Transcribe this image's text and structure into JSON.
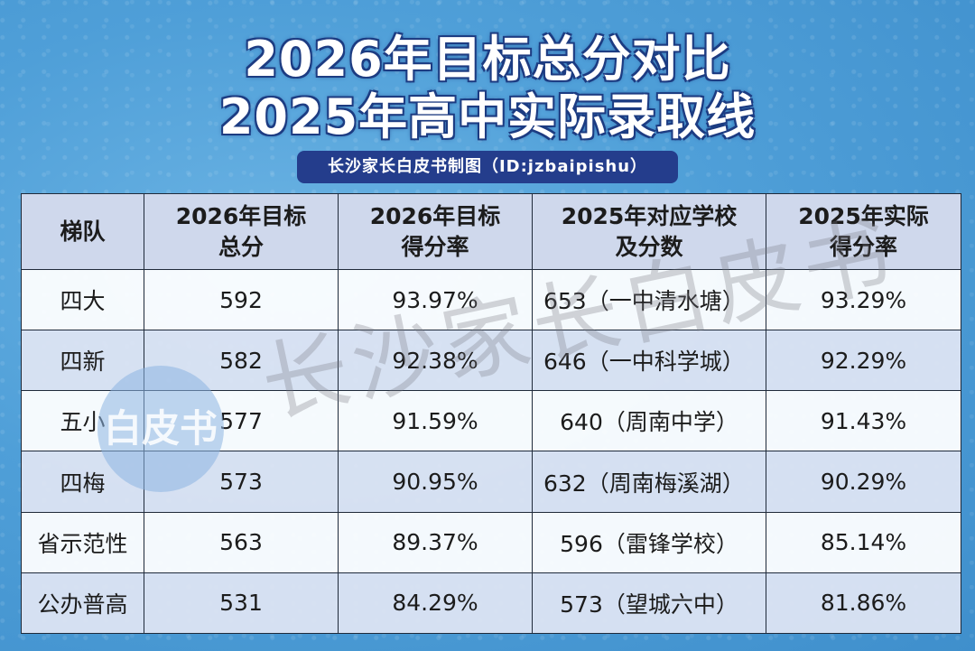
{
  "title_line1": "2026年目标总分对比",
  "title_line2": "2025年高中实际录取线",
  "subtitle": "长沙家长白皮书制图（ID:jzbaipishu）",
  "table": {
    "headers": [
      [
        "梯队"
      ],
      [
        "2026年目标",
        "总分"
      ],
      [
        "2026年目标",
        "得分率"
      ],
      [
        "2025年对应学校",
        "及分数"
      ],
      [
        "2025年实际",
        "得分率"
      ]
    ],
    "rows": [
      {
        "tier": "四大",
        "target_score": "592",
        "target_rate": "93.97%",
        "school": "653（一中清水塘）",
        "actual_rate": "93.29%"
      },
      {
        "tier": "四新",
        "target_score": "582",
        "target_rate": "92.38%",
        "school": "646（一中科学城）",
        "actual_rate": "92.29%"
      },
      {
        "tier": "五小",
        "target_score": "577",
        "target_rate": "91.59%",
        "school": "640（周南中学）",
        "actual_rate": "91.43%"
      },
      {
        "tier": "四梅",
        "target_score": "573",
        "target_rate": "90.95%",
        "school": "632（周南梅溪湖）",
        "actual_rate": "90.29%"
      },
      {
        "tier": "省示范性",
        "target_score": "563",
        "target_rate": "89.37%",
        "school": "596（雷锋学校）",
        "actual_rate": "85.14%"
      },
      {
        "tier": "公办普高",
        "target_score": "531",
        "target_rate": "84.29%",
        "school": "573（望城六中）",
        "actual_rate": "81.86%"
      }
    ]
  },
  "watermark": {
    "text": "长沙家长白皮书",
    "logo": "白皮书"
  }
}
